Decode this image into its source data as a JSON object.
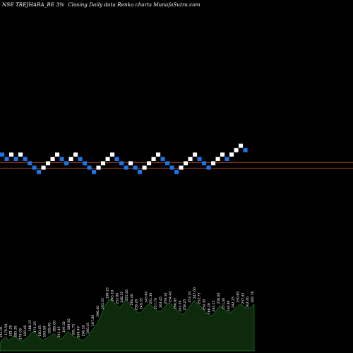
{
  "header": {
    "symbol": "NSE TREJHARA_BE 3%",
    "description": "Closing Daily data Renko charts MunafaSutra.com"
  },
  "colors": {
    "background": "#000000",
    "up_brick": "#ffffff",
    "down_brick": "#1e73e6",
    "price_line_1": "#c0501a",
    "price_line_2": "#8a3a12",
    "volume_fill": "#0d2a0d",
    "volume_stroke": "#33b033"
  },
  "chart_data": {
    "type": "renko",
    "brick_percent": 3,
    "bricks": [
      {
        "dir": "down",
        "level": 0
      },
      {
        "dir": "down",
        "level": -1
      },
      {
        "dir": "up",
        "level": 0
      },
      {
        "dir": "down",
        "level": -1
      },
      {
        "dir": "up",
        "level": 0
      },
      {
        "dir": "down",
        "level": -1
      },
      {
        "dir": "down",
        "level": -2
      },
      {
        "dir": "down",
        "level": -3
      },
      {
        "dir": "down",
        "level": -4
      },
      {
        "dir": "up",
        "level": -3
      },
      {
        "dir": "up",
        "level": -2
      },
      {
        "dir": "up",
        "level": -1
      },
      {
        "dir": "up",
        "level": 0
      },
      {
        "dir": "down",
        "level": -1
      },
      {
        "dir": "down",
        "level": -2
      },
      {
        "dir": "up",
        "level": -1
      },
      {
        "dir": "up",
        "level": 0
      },
      {
        "dir": "down",
        "level": -1
      },
      {
        "dir": "down",
        "level": -2
      },
      {
        "dir": "down",
        "level": -3
      },
      {
        "dir": "down",
        "level": -4
      },
      {
        "dir": "up",
        "level": -3
      },
      {
        "dir": "up",
        "level": -2
      },
      {
        "dir": "up",
        "level": -1
      },
      {
        "dir": "up",
        "level": 0
      },
      {
        "dir": "down",
        "level": -1
      },
      {
        "dir": "down",
        "level": -2
      },
      {
        "dir": "down",
        "level": -3
      },
      {
        "dir": "up",
        "level": -2
      },
      {
        "dir": "down",
        "level": -3
      },
      {
        "dir": "down",
        "level": -4
      },
      {
        "dir": "up",
        "level": -3
      },
      {
        "dir": "up",
        "level": -2
      },
      {
        "dir": "up",
        "level": -1
      },
      {
        "dir": "up",
        "level": 0
      },
      {
        "dir": "down",
        "level": -1
      },
      {
        "dir": "down",
        "level": -2
      },
      {
        "dir": "down",
        "level": -3
      },
      {
        "dir": "down",
        "level": -4
      },
      {
        "dir": "up",
        "level": -3
      },
      {
        "dir": "up",
        "level": -2
      },
      {
        "dir": "up",
        "level": -1
      },
      {
        "dir": "up",
        "level": 0
      },
      {
        "dir": "down",
        "level": -1
      },
      {
        "dir": "down",
        "level": -2
      },
      {
        "dir": "down",
        "level": -3
      },
      {
        "dir": "up",
        "level": -2
      },
      {
        "dir": "up",
        "level": -1
      },
      {
        "dir": "up",
        "level": 0
      },
      {
        "dir": "down",
        "level": -1
      },
      {
        "dir": "up",
        "level": 0
      },
      {
        "dir": "up",
        "level": 1
      },
      {
        "dir": "up",
        "level": 2
      },
      {
        "dir": "down",
        "level": 1
      }
    ],
    "price_lines": [
      {
        "name": "last-close",
        "level": -1.3
      },
      {
        "name": "prior-close",
        "level": -2.6
      }
    ],
    "volume": [
      0.12,
      0.18,
      0.22,
      0.16,
      0.2,
      0.24,
      0.19,
      0.17,
      0.15,
      0.2,
      0.22,
      0.28,
      0.3,
      0.26,
      0.2,
      0.16,
      0.19,
      0.21,
      0.24,
      0.27,
      0.22,
      0.18,
      0.2,
      0.26,
      0.3,
      0.25,
      0.22,
      0.2,
      0.18,
      0.16,
      0.2,
      0.24,
      0.3,
      0.36,
      0.42,
      0.5,
      0.62,
      0.72,
      0.78,
      0.8,
      0.74,
      0.7,
      0.66,
      0.72,
      0.78,
      0.75,
      0.68,
      0.64,
      0.6,
      0.58,
      0.62,
      0.68,
      0.72,
      0.7,
      0.66,
      0.62,
      0.6,
      0.64,
      0.7,
      0.74,
      0.72,
      0.68,
      0.62,
      0.58,
      0.56,
      0.6,
      0.66,
      0.72,
      0.78,
      0.74,
      0.7,
      0.64,
      0.6,
      0.56,
      0.54,
      0.58,
      0.64,
      0.7,
      0.66,
      0.62,
      0.58,
      0.6,
      0.64,
      0.68,
      0.72,
      0.7,
      0.66,
      0.64,
      0.68,
      0.72
    ],
    "volume_labels": [
      "192.05",
      "176.50",
      "181.20",
      "185.30",
      "178.00",
      "190.40",
      "188.15",
      "174.25",
      "180.05",
      "193.50",
      "199.00",
      "185.60",
      "191.45",
      "195.02",
      "189.50",
      "201.75",
      "208.40",
      "196.10",
      "190.45",
      "187.80",
      "196.40",
      "203.55",
      "198.25",
      "245.10",
      "252.80",
      "248.35",
      "255.60",
      "261.40",
      "258.20",
      "249.55",
      "243.80",
      "251.30",
      "257.70",
      "263.45",
      "259.10",
      "254.40",
      "266.85",
      "262.50",
      "258.25",
      "253.10",
      "247.60",
      "252.75",
      "259.30",
      "268.20",
      "264.15",
      "258.60",
      "251.40",
      "246.90",
      "242.25",
      "250.80",
      "257.45",
      "262.40",
      "266.78"
    ]
  }
}
